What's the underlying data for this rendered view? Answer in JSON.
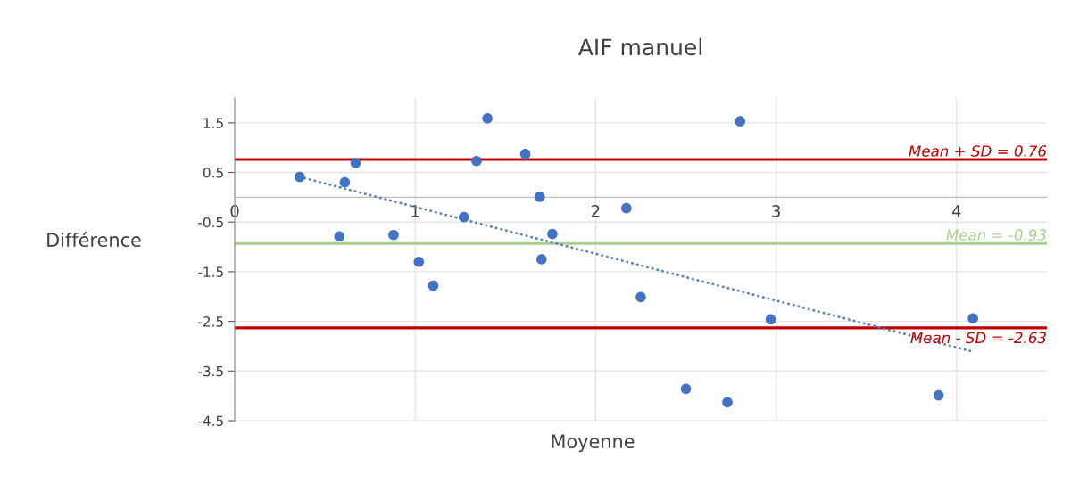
{
  "chart_data": {
    "type": "scatter",
    "title": "AIF manuel",
    "xlabel": "Moyenne",
    "ylabel": "Différence",
    "xlim": [
      0,
      4.5
    ],
    "xticks": [
      0,
      1,
      2,
      3,
      4
    ],
    "ylim": [
      -4.5,
      2
    ],
    "yticks": [
      -4.5,
      -3.5,
      -2.5,
      -1.5,
      -0.5,
      0.5,
      1.5
    ],
    "grid": true,
    "legend": false,
    "series": [
      {
        "marker": "circle",
        "color": "#4472c4",
        "x": [
          0.36,
          0.61,
          0.67,
          0.58,
          0.88,
          1.02,
          1.1,
          1.27,
          1.34,
          1.4,
          1.61,
          1.69,
          1.7,
          1.76,
          2.17,
          2.25,
          2.5,
          2.73,
          2.8,
          2.97,
          3.9,
          4.09
        ],
        "values": [
          0.41,
          0.3,
          0.69,
          -0.79,
          -0.76,
          -1.3,
          -1.78,
          -0.4,
          0.73,
          1.59,
          0.87,
          0.01,
          -1.25,
          -0.74,
          -0.22,
          -2.01,
          -3.86,
          -4.13,
          1.53,
          -2.46,
          -3.99,
          -2.44
        ]
      },
      {
        "type": "line",
        "marker": "none",
        "color": "#5b7fbf",
        "line_style": "dotted",
        "x": [
          0.36,
          4.09
        ],
        "values": [
          0.41,
          -3.11
        ]
      }
    ],
    "ref_lines": [
      {
        "axis": "y",
        "value": 0.76,
        "label": "Mean + SD = 0.76",
        "color": "#c00000"
      },
      {
        "axis": "y",
        "value": -0.93,
        "label": "Mean = -0.93",
        "color": "#a9d18e"
      },
      {
        "axis": "y",
        "value": -2.63,
        "label": "Mean - SD = -2.63",
        "color": "#c00000"
      }
    ]
  }
}
